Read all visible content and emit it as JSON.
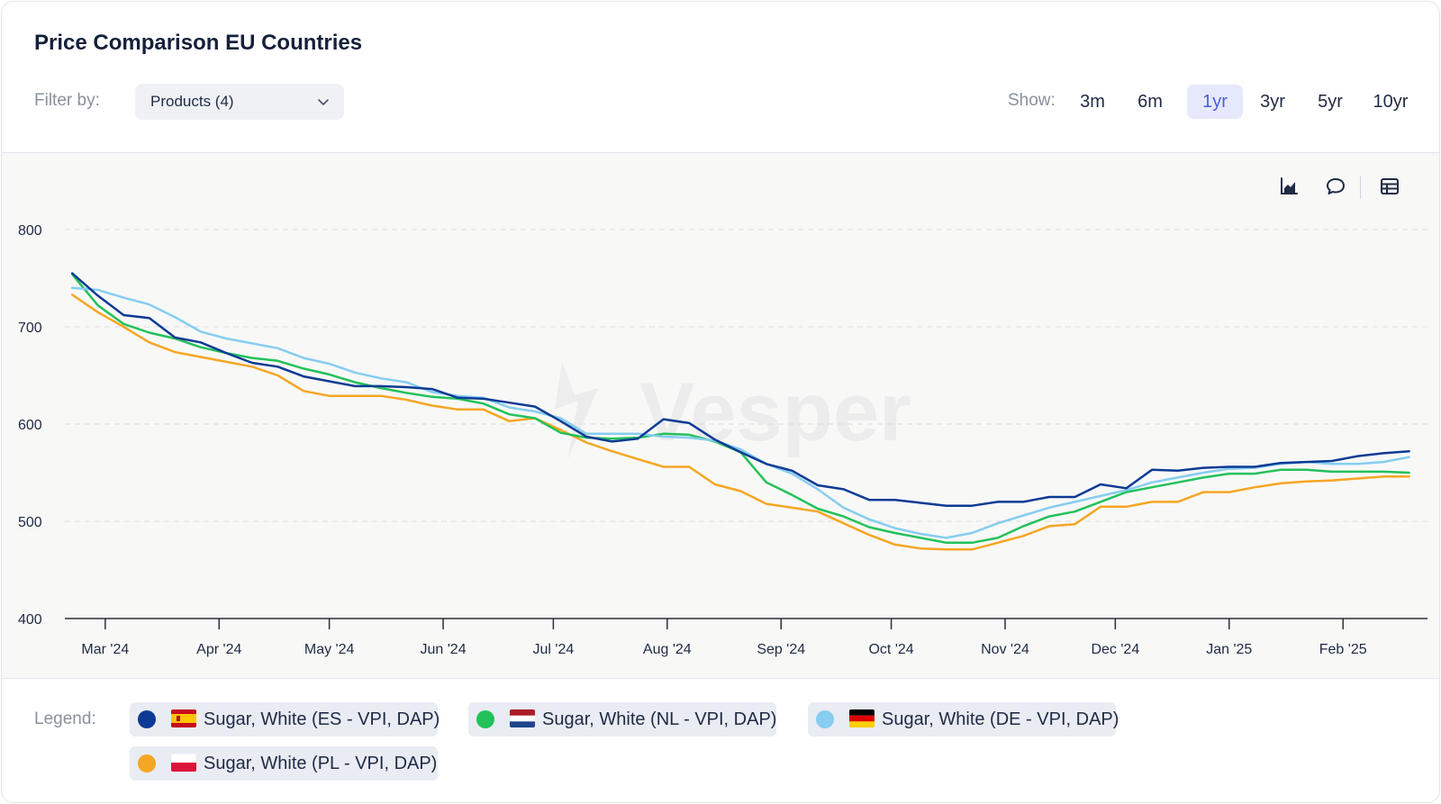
{
  "header": {
    "title": "Price Comparison EU Countries",
    "filter_label": "Filter by:",
    "filter_value": "Products (4)",
    "show_label": "Show:",
    "ranges": [
      "3m",
      "6m",
      "1yr",
      "3yr",
      "5yr",
      "10yr"
    ],
    "active_range": "1yr",
    "active_color": "#4b5fe0"
  },
  "toolbar": {
    "icons": [
      "area-chart-icon",
      "comment-icon",
      "table-icon"
    ]
  },
  "watermark": "Vesper",
  "legend": {
    "label": "Legend:",
    "items": [
      {
        "label": "Sugar, White (ES - VPI, DAP)",
        "color": "#0d3a94",
        "flag": "spain-flag-icon"
      },
      {
        "label": "Sugar, White (NL - VPI, DAP)",
        "color": "#23c15a",
        "flag": "netherlands-flag-icon"
      },
      {
        "label": "Sugar, White (DE - VPI, DAP)",
        "color": "#86cdf0",
        "flag": "germany-flag-icon"
      },
      {
        "label": "Sugar, White (PL - VPI, DAP)",
        "color": "#f5a623",
        "flag": "poland-flag-icon"
      }
    ]
  },
  "chart_data": {
    "type": "line",
    "title": "Price Comparison EU Countries",
    "xlabel": "",
    "ylabel": "",
    "ylim": [
      400,
      800
    ],
    "yticks": [
      400,
      500,
      600,
      700,
      800
    ],
    "grid": true,
    "legend_position": "bottom",
    "xlim": [
      "2024-02-19",
      "2025-02-24"
    ],
    "xticks": [
      {
        "label": "Mar '24",
        "date": "2024-03-01"
      },
      {
        "label": "Apr '24",
        "date": "2024-04-01"
      },
      {
        "label": "May '24",
        "date": "2024-05-01"
      },
      {
        "label": "Jun '24",
        "date": "2024-06-01"
      },
      {
        "label": "Jul '24",
        "date": "2024-07-01"
      },
      {
        "label": "Aug '24",
        "date": "2024-08-01"
      },
      {
        "label": "Sep '24",
        "date": "2024-09-01"
      },
      {
        "label": "Oct '24",
        "date": "2024-10-01"
      },
      {
        "label": "Nov '24",
        "date": "2024-11-01"
      },
      {
        "label": "Dec '24",
        "date": "2024-12-01"
      },
      {
        "label": "Jan '25",
        "date": "2025-01-01"
      },
      {
        "label": "Feb '25",
        "date": "2025-02-01"
      }
    ],
    "x": [
      "2024-02-21",
      "2024-02-28",
      "2024-03-06",
      "2024-03-13",
      "2024-03-20",
      "2024-03-27",
      "2024-04-03",
      "2024-04-10",
      "2024-04-17",
      "2024-04-24",
      "2024-05-01",
      "2024-05-08",
      "2024-05-15",
      "2024-05-22",
      "2024-05-29",
      "2024-06-05",
      "2024-06-12",
      "2024-06-19",
      "2024-06-26",
      "2024-07-03",
      "2024-07-10",
      "2024-07-17",
      "2024-07-24",
      "2024-07-31",
      "2024-08-07",
      "2024-08-14",
      "2024-08-21",
      "2024-08-28",
      "2024-09-04",
      "2024-09-11",
      "2024-09-18",
      "2024-09-25",
      "2024-10-02",
      "2024-10-09",
      "2024-10-16",
      "2024-10-23",
      "2024-10-30",
      "2024-11-06",
      "2024-11-13",
      "2024-11-20",
      "2024-11-27",
      "2024-12-04",
      "2024-12-11",
      "2024-12-18",
      "2024-12-25",
      "2025-01-01",
      "2025-01-08",
      "2025-01-15",
      "2025-01-22",
      "2025-01-29",
      "2025-02-05",
      "2025-02-12",
      "2025-02-19"
    ],
    "series": [
      {
        "name": "Sugar, White (ES - VPI, DAP)",
        "color": "#0d3a94",
        "values": [
          755,
          732,
          712,
          709,
          689,
          684,
          673,
          663,
          659,
          649,
          644,
          639,
          639,
          638,
          636,
          627,
          626,
          622,
          618,
          603,
          587,
          582,
          585,
          605,
          601,
          584,
          571,
          559,
          552,
          537,
          533,
          522,
          522,
          519,
          516,
          516,
          520,
          520,
          525,
          525,
          538,
          534,
          553,
          552,
          555,
          556,
          556,
          560,
          561,
          562,
          567,
          570,
          572
        ]
      },
      {
        "name": "Sugar, White (NL - VPI, DAP)",
        "color": "#23c15a",
        "values": [
          754,
          722,
          703,
          694,
          688,
          679,
          673,
          668,
          665,
          657,
          651,
          643,
          637,
          632,
          628,
          626,
          621,
          610,
          606,
          591,
          586,
          585,
          586,
          590,
          589,
          582,
          571,
          540,
          527,
          513,
          505,
          494,
          488,
          483,
          478,
          478,
          483,
          495,
          505,
          510,
          520,
          530,
          535,
          540,
          545,
          549,
          549,
          553,
          553,
          551,
          551,
          551,
          550
        ]
      },
      {
        "name": "Sugar, White (DE - VPI, DAP)",
        "color": "#86cdf0",
        "values": [
          740,
          738,
          730,
          723,
          710,
          695,
          688,
          683,
          678,
          668,
          662,
          653,
          647,
          643,
          633,
          629,
          627,
          617,
          613,
          606,
          590,
          590,
          590,
          587,
          586,
          583,
          574,
          559,
          549,
          533,
          514,
          502,
          493,
          487,
          483,
          488,
          498,
          506,
          514,
          520,
          526,
          532,
          540,
          545,
          550,
          554,
          555,
          559,
          561,
          559,
          559,
          561,
          566
        ]
      },
      {
        "name": "Sugar, White (PL - VPI, DAP)",
        "color": "#f5a623",
        "values": [
          733,
          715,
          700,
          684,
          674,
          669,
          664,
          659,
          650,
          634,
          629,
          629,
          629,
          625,
          619,
          615,
          615,
          603,
          606,
          594,
          581,
          572,
          564,
          556,
          556,
          538,
          531,
          518,
          514,
          510,
          498,
          486,
          476,
          472,
          471,
          471,
          478,
          485,
          495,
          497,
          515,
          515,
          520,
          520,
          530,
          530,
          535,
          539,
          541,
          542,
          544,
          546,
          546
        ]
      }
    ]
  }
}
